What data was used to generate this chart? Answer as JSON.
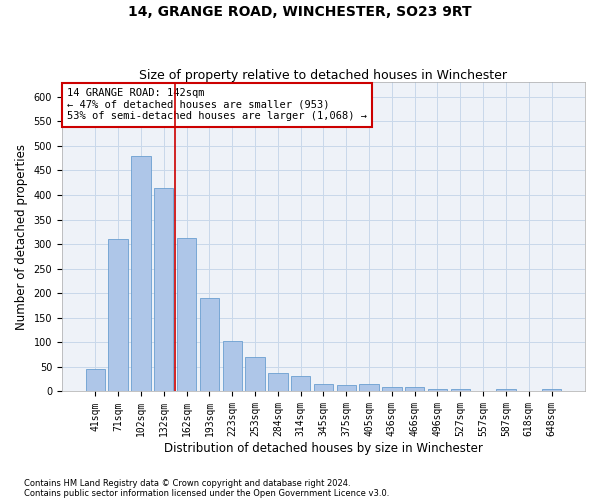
{
  "title": "14, GRANGE ROAD, WINCHESTER, SO23 9RT",
  "subtitle": "Size of property relative to detached houses in Winchester",
  "xlabel": "Distribution of detached houses by size in Winchester",
  "ylabel": "Number of detached properties",
  "footnote1": "Contains HM Land Registry data © Crown copyright and database right 2024.",
  "footnote2": "Contains public sector information licensed under the Open Government Licence v3.0.",
  "categories": [
    "41sqm",
    "71sqm",
    "102sqm",
    "132sqm",
    "162sqm",
    "193sqm",
    "223sqm",
    "253sqm",
    "284sqm",
    "314sqm",
    "345sqm",
    "375sqm",
    "405sqm",
    "436sqm",
    "466sqm",
    "496sqm",
    "527sqm",
    "557sqm",
    "587sqm",
    "618sqm",
    "648sqm"
  ],
  "values": [
    46,
    311,
    480,
    415,
    313,
    190,
    102,
    70,
    38,
    31,
    15,
    13,
    15,
    10,
    9,
    5,
    5,
    0,
    5,
    0,
    5
  ],
  "bar_color": "#aec6e8",
  "bar_edge_color": "#6a9fd0",
  "grid_color": "#c8d8ea",
  "annotation_text": "14 GRANGE ROAD: 142sqm\n← 47% of detached houses are smaller (953)\n53% of semi-detached houses are larger (1,068) →",
  "annotation_box_color": "#ffffff",
  "annotation_box_edge": "#cc0000",
  "vline_x": 3.5,
  "vline_color": "#cc0000",
  "ylim": [
    0,
    630
  ],
  "yticks": [
    0,
    50,
    100,
    150,
    200,
    250,
    300,
    350,
    400,
    450,
    500,
    550,
    600
  ],
  "background_color": "#eef2f8",
  "title_fontsize": 10,
  "subtitle_fontsize": 9,
  "xlabel_fontsize": 8.5,
  "ylabel_fontsize": 8.5,
  "tick_fontsize": 7,
  "annotation_fontsize": 7.5
}
